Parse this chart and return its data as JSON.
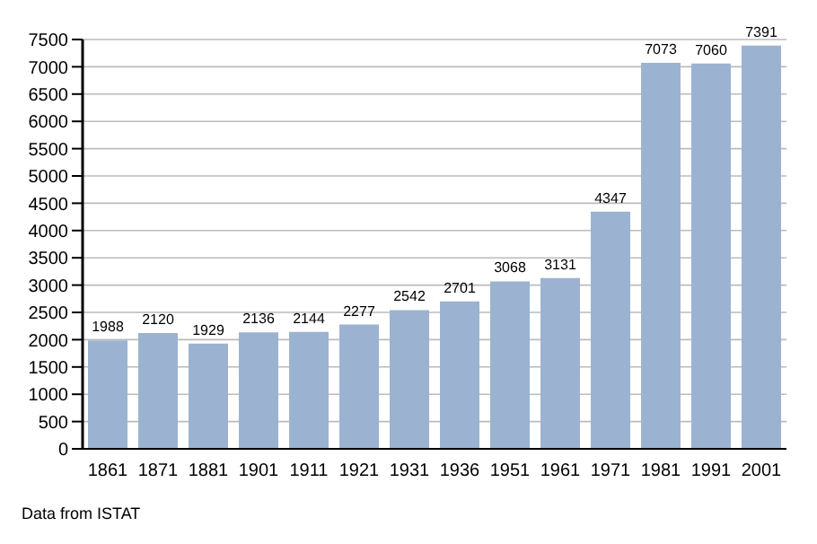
{
  "chart_data": {
    "type": "bar",
    "categories": [
      "1861",
      "1871",
      "1881",
      "1901",
      "1911",
      "1921",
      "1931",
      "1936",
      "1951",
      "1961",
      "1971",
      "1981",
      "1991",
      "2001"
    ],
    "values": [
      1988,
      2120,
      1929,
      2136,
      2144,
      2277,
      2542,
      2701,
      3068,
      3131,
      4347,
      7073,
      7060,
      7391
    ],
    "color": "#9bb3d0",
    "ylim": [
      0,
      7500
    ],
    "yticks": [
      0,
      500,
      1000,
      1500,
      2000,
      2500,
      3000,
      3500,
      4000,
      4500,
      5000,
      5500,
      6000,
      6500,
      7000,
      7500
    ],
    "grid": "y",
    "data_labels": true,
    "annotations": [
      "Data from ISTAT"
    ]
  }
}
